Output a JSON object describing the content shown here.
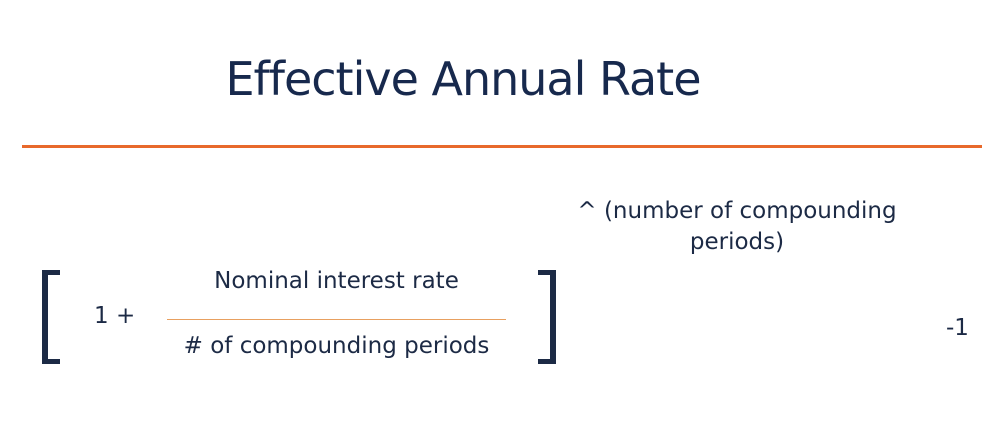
{
  "title": "Effective Annual Rate",
  "formula": {
    "exponent": "^ (number of compounding periods)",
    "one_plus": "1 +",
    "numerator": "Nominal interest rate",
    "denominator": "# of compounding periods",
    "minus_one": "-1"
  }
}
